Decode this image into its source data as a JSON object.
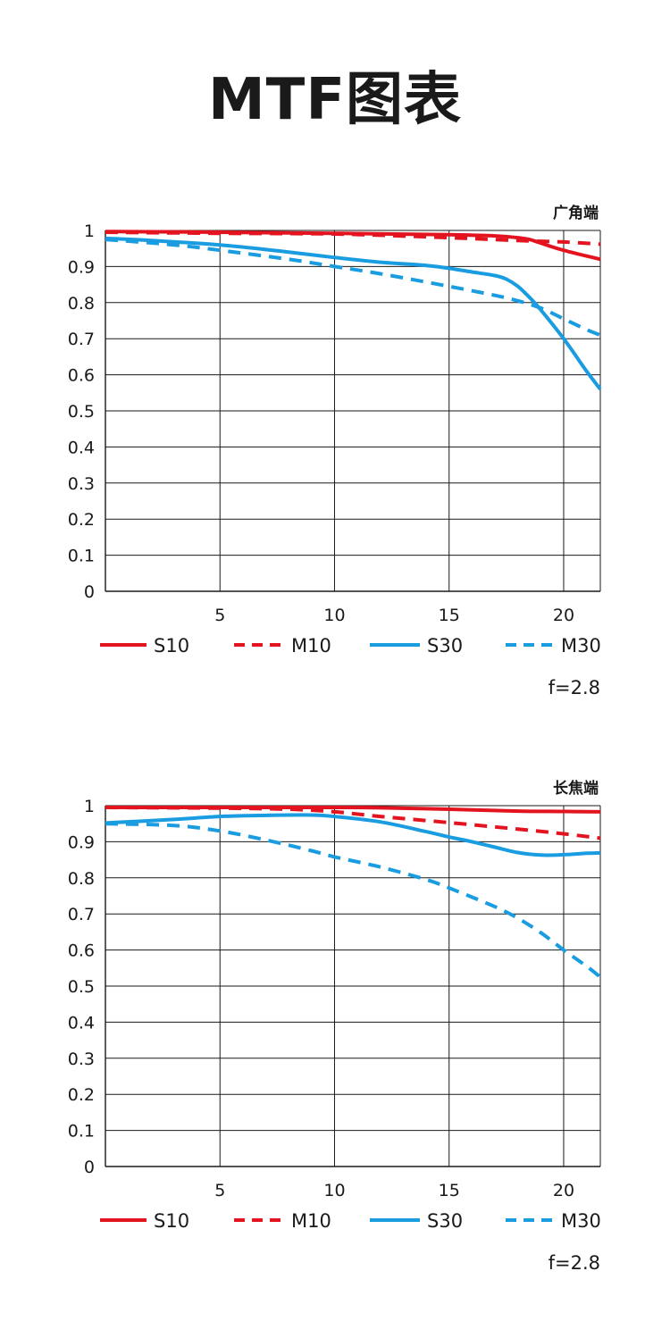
{
  "page": {
    "title": "MTF图表"
  },
  "colors": {
    "red": "#e3141f",
    "blue": "#1a9ce0",
    "grid": "#1a1a1a"
  },
  "chart_data": [
    {
      "type": "line",
      "title": "广角端",
      "aperture_label": "f=2.8",
      "xlim": [
        0,
        21.6
      ],
      "ylim": [
        0,
        1
      ],
      "x_ticks": [
        5,
        10,
        15,
        20
      ],
      "x_tick_labels": [
        "5",
        "10",
        "15",
        "20"
      ],
      "y_ticks": [
        0,
        0.1,
        0.2,
        0.3,
        0.4,
        0.5,
        0.6,
        0.7,
        0.8,
        0.9,
        1
      ],
      "y_tick_labels": [
        "0",
        "0.1",
        "0.2",
        "0.3",
        "0.4",
        "0.5",
        "0.6",
        "0.7",
        "0.8",
        "0.9",
        "1"
      ],
      "grid": true,
      "legend_position": "bottom",
      "series": [
        {
          "name": "S10",
          "color": "#e3141f",
          "style": "solid",
          "x": [
            0,
            5,
            10,
            15,
            17,
            18,
            18.5,
            19,
            20,
            21.6
          ],
          "y": [
            0.997,
            0.995,
            0.992,
            0.988,
            0.985,
            0.98,
            0.975,
            0.965,
            0.945,
            0.92
          ]
        },
        {
          "name": "M10",
          "color": "#e3141f",
          "style": "dashed",
          "x": [
            0,
            5,
            10,
            15,
            18,
            20,
            21.6
          ],
          "y": [
            0.995,
            0.992,
            0.99,
            0.98,
            0.972,
            0.968,
            0.962
          ]
        },
        {
          "name": "S30",
          "color": "#1a9ce0",
          "style": "solid",
          "x": [
            0,
            2,
            5,
            8,
            10,
            12,
            14,
            15,
            16,
            17,
            17.5,
            18,
            18.5,
            19,
            20,
            21,
            21.6
          ],
          "y": [
            0.978,
            0.972,
            0.96,
            0.94,
            0.925,
            0.912,
            0.903,
            0.895,
            0.885,
            0.875,
            0.865,
            0.845,
            0.815,
            0.78,
            0.7,
            0.61,
            0.56
          ]
        },
        {
          "name": "M30",
          "color": "#1a9ce0",
          "style": "dashed",
          "x": [
            0,
            3,
            5,
            8,
            10,
            12,
            15,
            17,
            18,
            19,
            20,
            21,
            21.6
          ],
          "y": [
            0.975,
            0.96,
            0.945,
            0.92,
            0.9,
            0.88,
            0.845,
            0.82,
            0.805,
            0.785,
            0.755,
            0.725,
            0.71
          ]
        }
      ]
    },
    {
      "type": "line",
      "title": "长焦端",
      "aperture_label": "f=2.8",
      "xlim": [
        0,
        21.6
      ],
      "ylim": [
        0,
        1
      ],
      "x_ticks": [
        5,
        10,
        15,
        20
      ],
      "x_tick_labels": [
        "5",
        "10",
        "15",
        "20"
      ],
      "y_ticks": [
        0,
        0.1,
        0.2,
        0.3,
        0.4,
        0.5,
        0.6,
        0.7,
        0.8,
        0.9,
        1
      ],
      "y_tick_labels": [
        "0",
        "0.1",
        "0.2",
        "0.3",
        "0.4",
        "0.5",
        "0.6",
        "0.7",
        "0.8",
        "0.9",
        "1"
      ],
      "grid": true,
      "legend_position": "bottom",
      "series": [
        {
          "name": "S10",
          "color": "#e3141f",
          "style": "solid",
          "x": [
            0,
            5,
            10,
            12,
            15,
            18,
            20,
            21.6
          ],
          "y": [
            0.995,
            0.995,
            0.995,
            0.994,
            0.99,
            0.985,
            0.984,
            0.983
          ]
        },
        {
          "name": "M10",
          "color": "#e3141f",
          "style": "dashed",
          "x": [
            0,
            5,
            8,
            10,
            12,
            15,
            18,
            20,
            21.6
          ],
          "y": [
            0.995,
            0.993,
            0.99,
            0.983,
            0.97,
            0.953,
            0.935,
            0.922,
            0.91
          ]
        },
        {
          "name": "S30",
          "color": "#1a9ce0",
          "style": "solid",
          "x": [
            0,
            3,
            5,
            7,
            9,
            10,
            12,
            14,
            15,
            16,
            17,
            18,
            19,
            20,
            21,
            21.6
          ],
          "y": [
            0.952,
            0.962,
            0.97,
            0.973,
            0.974,
            0.97,
            0.955,
            0.928,
            0.913,
            0.9,
            0.885,
            0.87,
            0.863,
            0.864,
            0.868,
            0.869
          ]
        },
        {
          "name": "M30",
          "color": "#1a9ce0",
          "style": "dashed",
          "x": [
            0,
            3,
            5,
            7,
            9,
            10,
            12,
            14,
            15,
            17,
            18,
            19,
            20,
            21,
            21.6
          ],
          "y": [
            0.95,
            0.945,
            0.93,
            0.905,
            0.875,
            0.858,
            0.83,
            0.795,
            0.772,
            0.72,
            0.688,
            0.648,
            0.6,
            0.555,
            0.525
          ]
        }
      ]
    }
  ]
}
